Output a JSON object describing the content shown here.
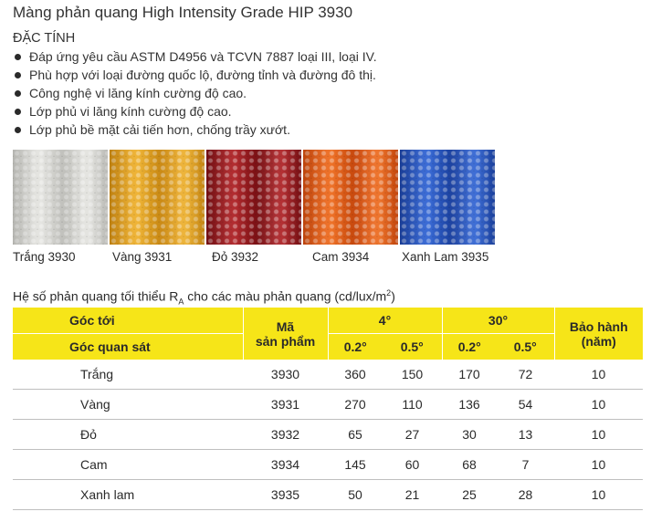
{
  "title": "Màng phản quang High Intensity Grade HIP 3930",
  "section_heading": "ĐẶC TÍNH",
  "features": [
    "Đáp ứng yêu cầu ASTM D4956 và TCVN 7887 loại III, loại IV.",
    "Phù hợp với loại đường quốc lộ, đường tỉnh và đường đô thị.",
    "Công nghệ vi lăng kính cường độ cao.",
    "Lớp phủ vi lăng kính cường độ cao.",
    "Lớp phủ bề mặt cải tiến hơn, chống trầy xướt."
  ],
  "swatches": [
    {
      "label": "Trắng 3930",
      "color": "#e6e6e2",
      "dark": "#c9c9c4"
    },
    {
      "label": "Vàng 3931",
      "color": "#f0b12a",
      "dark": "#d48f12"
    },
    {
      "label": "Đỏ 3932",
      "color": "#b01e22",
      "dark": "#7e1014"
    },
    {
      "label": "Cam 3934",
      "color": "#f06a1a",
      "dark": "#d24a0c"
    },
    {
      "label": "Xanh Lam 3935",
      "color": "#2e63d6",
      "dark": "#1c44a8"
    }
  ],
  "table_caption": {
    "prefix": "Hệ số phản quang tối thiểu R",
    "sub": "A",
    "middle": " cho các màu phản quang (cd/lux/m",
    "sup": "2",
    "suffix": ")"
  },
  "table": {
    "header": {
      "angle_in": "Góc tới",
      "angle_obs": "Góc quan sát",
      "code_line1": "Mã",
      "code_line2": "sản phẩm",
      "entry_4": "4°",
      "entry_30": "30°",
      "obs_02": "0.2°",
      "obs_05": "0.5°",
      "warranty_line1": "Bảo hành",
      "warranty_line2": "(năm)"
    },
    "rows": [
      {
        "color": "Trắng",
        "code": "3930",
        "v4_02": "360",
        "v4_05": "150",
        "v30_02": "170",
        "v30_05": "72",
        "warranty": "10"
      },
      {
        "color": "Vàng",
        "code": "3931",
        "v4_02": "270",
        "v4_05": "110",
        "v30_02": "136",
        "v30_05": "54",
        "warranty": "10"
      },
      {
        "color": "Đỏ",
        "code": "3932",
        "v4_02": "65",
        "v4_05": "27",
        "v30_02": "30",
        "v30_05": "13",
        "warranty": "10"
      },
      {
        "color": "Cam",
        "code": "3934",
        "v4_02": "145",
        "v4_05": "60",
        "v30_02": "68",
        "v30_05": "7",
        "warranty": "10"
      },
      {
        "color": "Xanh lam",
        "code": "3935",
        "v4_02": "50",
        "v4_05": "21",
        "v30_02": "25",
        "v30_05": "28",
        "warranty": "10"
      }
    ]
  },
  "accent_color": "#f6e518"
}
